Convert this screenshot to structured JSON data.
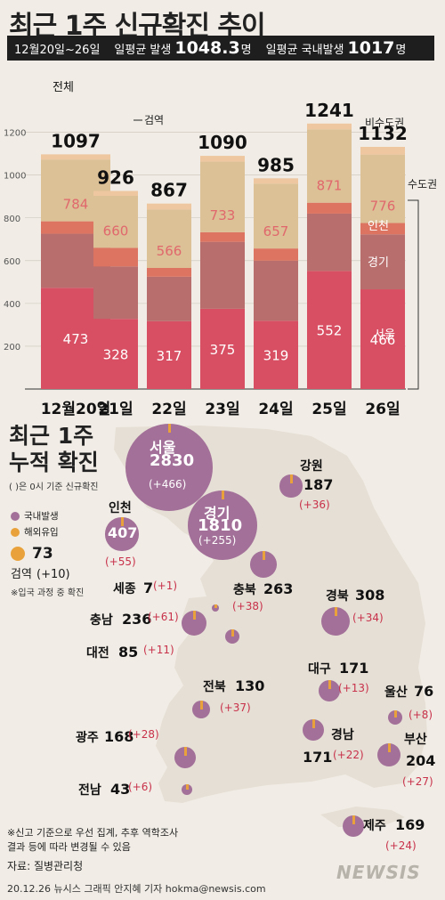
{
  "header": {
    "title": "최근 1주 신규확진 추이",
    "period": "12월20일~26일",
    "avg_label": "일평균 발생",
    "avg_value": "1048.3",
    "domestic_label": "일평균 국내발생",
    "domestic_value": "1017",
    "unit": "명"
  },
  "colors": {
    "background": "#f1ede6",
    "seoul": "#d84f63",
    "gyeonggi": "#b86e6c",
    "incheon": "#dd7462",
    "nonmetro": "#dcc096",
    "quarantine": "#eec7a0",
    "map_land": "#e9e3da",
    "bubble": "#a27098",
    "overseas": "#e9a23b"
  },
  "chart_data": {
    "type": "bar",
    "stacked": true,
    "categories": [
      "12월20일",
      "21일",
      "22일",
      "23일",
      "24일",
      "25일",
      "26일"
    ],
    "yticks": [
      200,
      400,
      600,
      800,
      1000,
      1200
    ],
    "ylim": [
      0,
      1300
    ],
    "totals": [
      1097,
      926,
      867,
      1090,
      985,
      1241,
      1132
    ],
    "metro_totals": [
      784,
      660,
      566,
      733,
      657,
      871,
      776
    ],
    "series": [
      {
        "name": "서울",
        "values": [
          473,
          328,
          317,
          375,
          319,
          552,
          466
        ]
      },
      {
        "name": "경기",
        "values": [
          253,
          245,
          208,
          313,
          281,
          268,
          257
        ]
      },
      {
        "name": "인천",
        "values": [
          58,
          87,
          41,
          45,
          57,
          51,
          53
        ]
      },
      {
        "name": "비수도권",
        "values": [
          289,
          243,
          273,
          330,
          303,
          343,
          320
        ]
      },
      {
        "name": "검역",
        "values": [
          24,
          23,
          28,
          27,
          25,
          27,
          36
        ]
      }
    ],
    "labels": {
      "total": "전체",
      "quarantine": "검역",
      "nonmetro": "비수도권",
      "metro": "수도권",
      "incheon": "인천",
      "gyeonggi": "경기",
      "seoul": "서울"
    }
  },
  "section2": {
    "title_line1": "최근 1주",
    "title_line2": "누적 확진",
    "note": "( )은 0시 기준 신규확진",
    "legend_domestic": "국내발생",
    "legend_overseas": "해외유입",
    "quarantine_value": "73",
    "quarantine_label": "검역",
    "quarantine_new": "(+10)",
    "quarantine_note": "※입국 과정 중 확진"
  },
  "regions": [
    {
      "id": "seoul",
      "name": "서울",
      "total": "2830",
      "new": "(+466)",
      "size": 2830
    },
    {
      "id": "gyeonggi",
      "name": "경기",
      "total": "1810",
      "new": "(+255)",
      "size": 1810
    },
    {
      "id": "incheon",
      "name": "인천",
      "total": "407",
      "new": "(+55)",
      "size": 407
    },
    {
      "id": "gangwon",
      "name": "강원",
      "total": "187",
      "new": "(+36)",
      "size": 187
    },
    {
      "id": "chungbuk",
      "name": "충북",
      "total": "263",
      "new": "(+38)",
      "size": 263
    },
    {
      "id": "sejong",
      "name": "세종",
      "total": "7",
      "new": "(+1)",
      "size": 7
    },
    {
      "id": "chungnam",
      "name": "충남",
      "total": "236",
      "new": "(+61)",
      "size": 236
    },
    {
      "id": "daejeon",
      "name": "대전",
      "total": "85",
      "new": "(+11)",
      "size": 85
    },
    {
      "id": "gyeongbuk",
      "name": "경북",
      "total": "308",
      "new": "(+34)",
      "size": 308
    },
    {
      "id": "daegu",
      "name": "대구",
      "total": "171",
      "new": "(+13)",
      "size": 171
    },
    {
      "id": "jeonbuk",
      "name": "전북",
      "total": "130",
      "new": "(+37)",
      "size": 130
    },
    {
      "id": "ulsan",
      "name": "울산",
      "total": "76",
      "new": "(+8)",
      "size": 76
    },
    {
      "id": "gwangju",
      "name": "광주",
      "total": "168",
      "new": "(+28)",
      "size": 168
    },
    {
      "id": "gyeongnam",
      "name": "경남",
      "total": "171",
      "new": "(+22)",
      "size": 171
    },
    {
      "id": "busan",
      "name": "부산",
      "total": "204",
      "new": "(+27)",
      "size": 204
    },
    {
      "id": "jeonnam",
      "name": "전남",
      "total": "43",
      "new": "(+6)",
      "size": 43
    },
    {
      "id": "jeju",
      "name": "제주",
      "total": "169",
      "new": "(+24)",
      "size": 169
    }
  ],
  "footer": {
    "note_line1": "※신고 기준으로 우선 집계, 추후 역학조사",
    "note_line2": "결과 등에 따라 변경될 수 있음",
    "source": "자료: 질병관리청",
    "credit": "20.12.26 뉴시스 그래픽 안지혜 기자 hokma@newsis.com",
    "watermark": "NEWSIS"
  }
}
